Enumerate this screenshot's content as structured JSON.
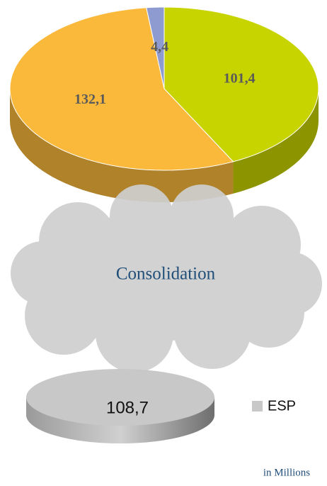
{
  "chart_data": [
    {
      "type": "pie3d",
      "values": [
        101.4,
        132.1,
        4.4
      ],
      "value_labels": [
        "101,4",
        "132,1",
        "4,4"
      ],
      "colors": [
        "#c8d400",
        "#fbb93c",
        "#8e9bd0"
      ]
    },
    {
      "type": "disc",
      "categories": [
        "ESP"
      ],
      "values": [
        108.7
      ],
      "value_labels": [
        "108,7"
      ],
      "colors": [
        "#c8c8c8"
      ],
      "annotations": [
        "Consolidation",
        "in Millions"
      ]
    }
  ]
}
